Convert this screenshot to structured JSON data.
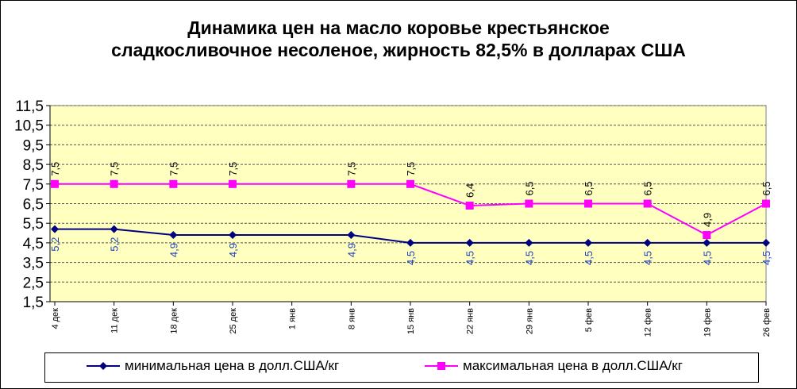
{
  "chart_data": {
    "type": "line",
    "title_line1": "Динамика цен на масло коровье крестьянское",
    "title_line2": "сладкосливочное несоленое, жирность  82,5%  в долларах США",
    "categories": [
      "4 дек",
      "11 дек",
      "18 дек",
      "25 дек",
      "1 янв",
      "8 янв",
      "15 янв",
      "22 янв",
      "29 янв",
      "5 фев",
      "12 фев",
      "19 фев",
      "26 фев"
    ],
    "yticks": [
      "1,5",
      "2,5",
      "3,5",
      "4,5",
      "5,5",
      "6,5",
      "7,5",
      "8,5",
      "9,5",
      "10,5",
      "11,5"
    ],
    "ylim": [
      1.5,
      11.5
    ],
    "grid": true,
    "legend_position": "bottom",
    "series": [
      {
        "name": "минимальная  цена  в долл.США/кг",
        "color": "#000080",
        "label_color": "#1f3fb8",
        "marker": "diamond",
        "values": [
          5.2,
          5.2,
          4.9,
          4.9,
          null,
          4.9,
          4.5,
          4.5,
          4.5,
          4.5,
          4.5,
          4.5,
          4.5
        ],
        "labels": [
          "5,2",
          "5,2",
          "4,9",
          "4,9",
          "",
          "4,9",
          "4,5",
          "4,5",
          "4,5",
          "4,5",
          "4,5",
          "4,5",
          "4,5"
        ]
      },
      {
        "name": "максимальная  цена  в долл.США/кг",
        "color": "#ff00ff",
        "label_color": "#000000",
        "marker": "square",
        "values": [
          7.5,
          7.5,
          7.5,
          7.5,
          null,
          7.5,
          7.5,
          6.4,
          6.5,
          6.5,
          6.5,
          4.9,
          6.5
        ],
        "labels": [
          "7,5",
          "7,5",
          "7,5",
          "7,5",
          "",
          "7,5",
          "7,5",
          "6,4",
          "6,5",
          "6,5",
          "6,5",
          "4,9",
          "6,5"
        ]
      }
    ],
    "plot_background": "#ffffc0"
  }
}
